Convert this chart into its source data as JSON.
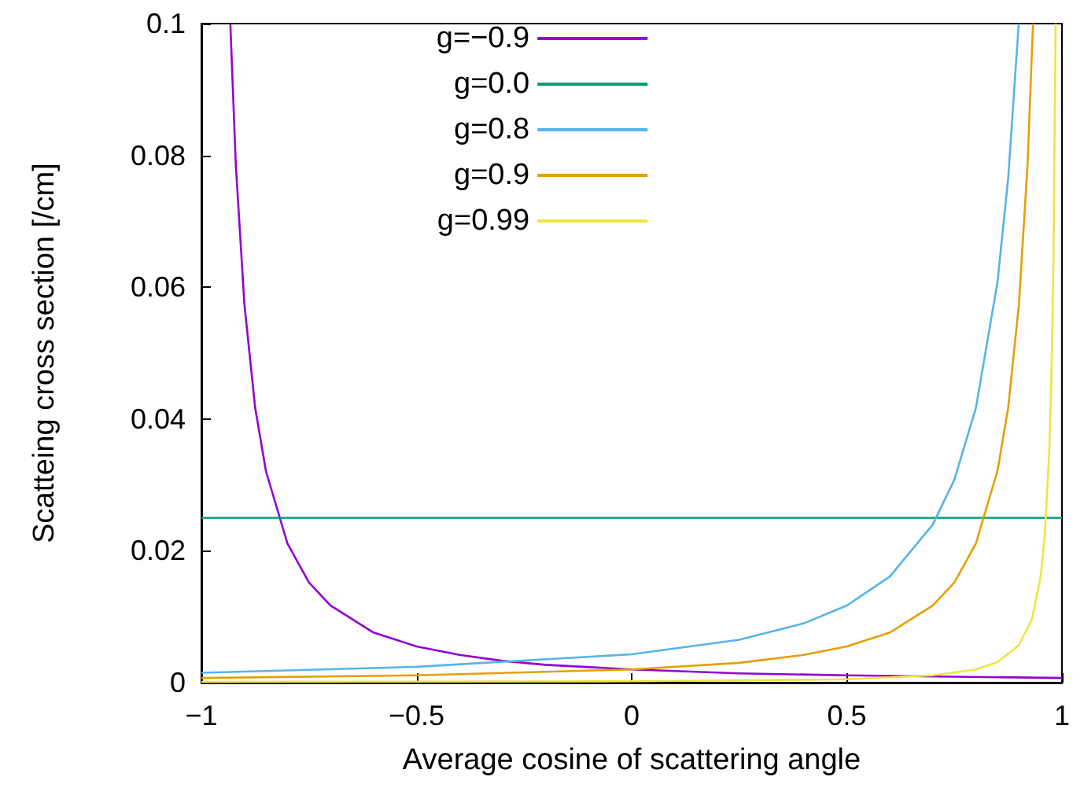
{
  "chart_data": {
    "type": "line",
    "xlabel": "Average cosine of scattering angle",
    "ylabel": "Scatteing cross section [/cm]",
    "xlim": [
      -1,
      1
    ],
    "xticks": [
      {
        "value": -1,
        "label": "−1"
      },
      {
        "value": -0.5,
        "label": "−0.5"
      },
      0,
      0.5,
      1
    ],
    "ylim": [
      0,
      0.1
    ],
    "yticks": [
      0,
      0.02,
      0.04,
      0.06,
      0.08,
      0.1
    ],
    "grid": false,
    "legend": "top",
    "marker": "none",
    "line_style": "solid",
    "series": [
      {
        "name": "g=−0.9",
        "color": "#9400d3",
        "x": [
          -0.9327,
          -0.92,
          -0.9,
          -0.875,
          -0.85,
          -0.8,
          -0.75,
          -0.7,
          -0.6,
          -0.5,
          -0.4,
          -0.3,
          -0.2,
          0,
          0.25,
          0.5,
          0.75,
          1
        ],
        "values": [
          0.1,
          0.0786,
          0.0574,
          0.0417,
          0.0321,
          0.0211,
          0.0152,
          0.0117,
          0.0076,
          0.0055,
          0.0042,
          0.0033,
          0.0027,
          0.002,
          0.0014,
          0.0011,
          0.0009,
          0.0007
        ]
      },
      {
        "name": "g=0.0",
        "color": "#009e73",
        "x": [
          -1,
          1
        ],
        "values": [
          0.025,
          0.025
        ]
      },
      {
        "name": "g=0.8",
        "color": "#56b4e9",
        "x": [
          -1,
          -0.5,
          0,
          0.25,
          0.4,
          0.5,
          0.6,
          0.7,
          0.75,
          0.8,
          0.85,
          0.875,
          0.8995
        ],
        "values": [
          0.0015,
          0.0024,
          0.0043,
          0.0065,
          0.009,
          0.0117,
          0.0161,
          0.024,
          0.0308,
          0.0417,
          0.0607,
          0.0765,
          0.1
        ]
      },
      {
        "name": "g=0.9",
        "color": "#e69f00",
        "x": [
          -1,
          -0.5,
          0,
          0.25,
          0.4,
          0.5,
          0.6,
          0.7,
          0.75,
          0.8,
          0.85,
          0.875,
          0.9,
          0.92,
          0.9327
        ],
        "values": [
          0.0007,
          0.0011,
          0.002,
          0.003,
          0.0042,
          0.0055,
          0.0076,
          0.0117,
          0.0152,
          0.0211,
          0.0321,
          0.0417,
          0.0574,
          0.0786,
          0.1
        ]
      },
      {
        "name": "g=0.99",
        "color": "#f0e442",
        "x": [
          -1,
          0,
          0.5,
          0.7,
          0.8,
          0.85,
          0.9,
          0.93,
          0.95,
          0.96,
          0.97,
          0.975,
          0.98,
          0.9853
        ],
        "values": [
          0.0001,
          0.0002,
          0.0005,
          0.0011,
          0.002,
          0.0031,
          0.0057,
          0.0096,
          0.0159,
          0.0223,
          0.0343,
          0.0451,
          0.0629,
          0.1
        ]
      }
    ]
  }
}
